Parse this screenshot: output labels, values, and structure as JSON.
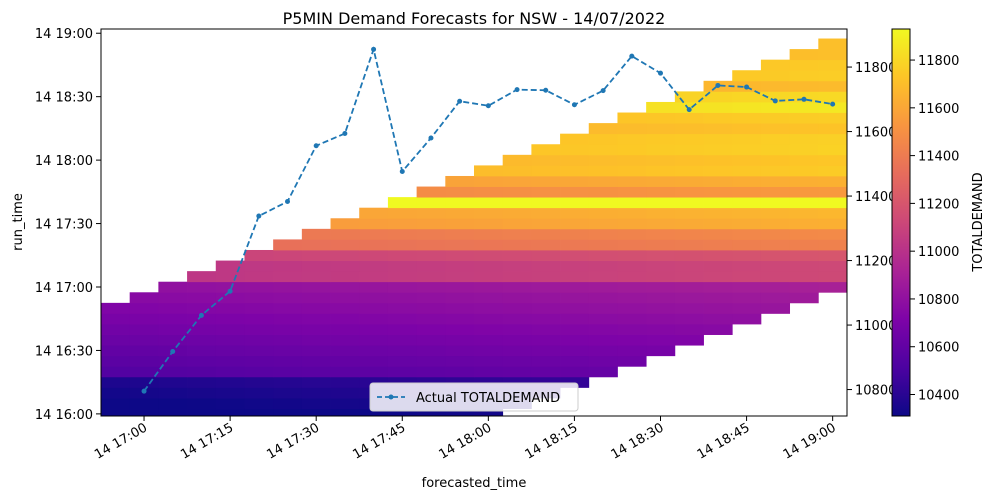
{
  "chart_data": {
    "type": "heatmap",
    "title": "P5MIN Demand Forecasts for NSW - 14/07/2022",
    "xlabel": "forecasted_time",
    "ylabel": "run_time",
    "right_ylabel": "",
    "colorbar_label": "TOTALDEMAND",
    "colormap": "plasma",
    "color_range": [
      10310,
      11930
    ],
    "x_ticks": [
      "14 17:00",
      "14 17:15",
      "14 17:30",
      "14 17:45",
      "14 18:00",
      "14 18:15",
      "14 18:30",
      "14 18:45",
      "14 19:00"
    ],
    "x_tick_minutes": [
      0,
      15,
      30,
      45,
      60,
      75,
      90,
      105,
      120
    ],
    "x_range_minutes": [
      -7.5,
      122.5
    ],
    "y_ticks": [
      "14 16:00",
      "14 16:30",
      "14 17:00",
      "14 17:30",
      "14 18:00",
      "14 18:30",
      "14 19:00"
    ],
    "y_tick_minutes": [
      -60,
      -30,
      0,
      30,
      60,
      90,
      120
    ],
    "y_range_minutes": [
      -61,
      122
    ],
    "right_y_ticks": [
      10800,
      11000,
      11200,
      11400,
      11600,
      11800
    ],
    "right_y_range": [
      10718,
      11918
    ],
    "colorbar_ticks": [
      10400,
      10600,
      10800,
      11000,
      11200,
      11400,
      11600,
      11800
    ],
    "series": [
      {
        "name": "Actual TOTALDEMAND",
        "style": "dashed-line-with-dots",
        "color": "#1f77b4",
        "x_minutes": [
          0,
          5,
          10,
          15,
          20,
          25,
          30,
          35,
          40,
          45,
          50,
          55,
          60,
          65,
          70,
          75,
          80,
          85,
          90,
          95,
          100,
          105,
          110,
          115,
          120
        ],
        "values": [
          10795,
          10918,
          11030,
          11105,
          11338,
          11383,
          11556,
          11594,
          11855,
          11476,
          11580,
          11694,
          11680,
          11730,
          11728,
          11683,
          11727,
          11834,
          11781,
          11668,
          11743,
          11738,
          11695,
          11700,
          11685
        ]
      }
    ],
    "legend": {
      "position": "bottom-center",
      "entries": [
        "Actual TOTALDEMAND"
      ]
    }
  }
}
